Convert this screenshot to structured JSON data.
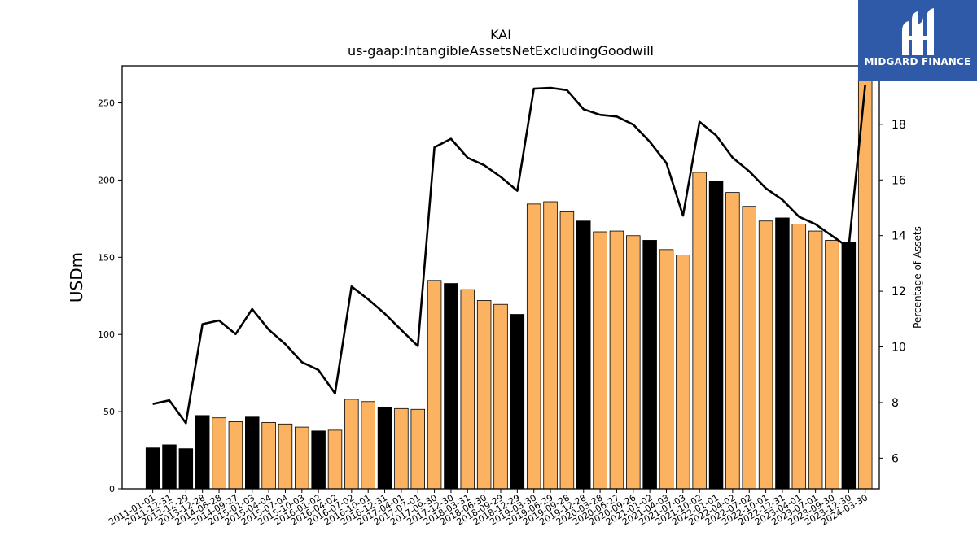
{
  "chart_data": {
    "type": "bar",
    "title": "KAI",
    "subtitle": "us-gaap:IntangibleAssetsNetExcludingGoodwill",
    "ylabel": "USDm",
    "y2label": "Percentage of Assets",
    "ylim": [
      0,
      274
    ],
    "y2lim": [
      4.9,
      20.1
    ],
    "yticks": [
      0,
      50,
      100,
      150,
      200,
      250
    ],
    "y2ticks": [
      6,
      8,
      10,
      12,
      14,
      16,
      18
    ],
    "grid": false,
    "categories": [
      "2011-01-01",
      "2011-12-31",
      "2012-12-29",
      "2013-12-28",
      "2014-06-28",
      "2014-09-27",
      "2015-01-03",
      "2015-04-04",
      "2015-07-04",
      "2015-10-03",
      "2016-01-02",
      "2016-04-02",
      "2016-07-02",
      "2016-10-01",
      "2016-12-31",
      "2017-04-01",
      "2017-07-01",
      "2017-09-30",
      "2017-12-30",
      "2018-03-31",
      "2018-06-30",
      "2018-09-29",
      "2018-12-29",
      "2019-03-30",
      "2019-06-29",
      "2019-09-28",
      "2019-12-28",
      "2020-03-28",
      "2020-06-27",
      "2020-09-26",
      "2021-01-02",
      "2021-04-03",
      "2021-07-03",
      "2021-10-02",
      "2022-01-01",
      "2022-04-02",
      "2022-07-02",
      "2022-10-01",
      "2022-12-31",
      "2023-04-01",
      "2023-07-01",
      "2023-09-30",
      "2023-12-30",
      "2024-03-30"
    ],
    "values": [
      26.5,
      28.5,
      26,
      47.5,
      46,
      43.5,
      46.5,
      43,
      42,
      40,
      37.5,
      38,
      58,
      56.5,
      52.5,
      52,
      51.5,
      135,
      133,
      129,
      122,
      119.5,
      113,
      184.5,
      186,
      179.5,
      173.5,
      166.5,
      167,
      164,
      161,
      155,
      151.5,
      205,
      199,
      192,
      183,
      173.5,
      175.5,
      171.5,
      167,
      161,
      159.5,
      274
    ],
    "bar_colors": [
      "black",
      "black",
      "black",
      "black",
      "orange",
      "orange",
      "black",
      "orange",
      "orange",
      "orange",
      "black",
      "orange",
      "orange",
      "orange",
      "black",
      "orange",
      "orange",
      "orange",
      "black",
      "orange",
      "orange",
      "orange",
      "black",
      "orange",
      "orange",
      "orange",
      "black",
      "orange",
      "orange",
      "orange",
      "black",
      "orange",
      "orange",
      "orange",
      "black",
      "orange",
      "orange",
      "orange",
      "black",
      "orange",
      "orange",
      "orange",
      "black",
      "orange"
    ],
    "line_values": [
      7.95,
      8.08,
      7.26,
      10.82,
      10.95,
      10.46,
      11.36,
      10.62,
      10.1,
      9.45,
      9.17,
      8.33,
      12.17,
      11.71,
      11.2,
      10.61,
      10.03,
      17.17,
      17.48,
      16.8,
      16.53,
      16.11,
      15.61,
      19.28,
      19.31,
      19.23,
      18.54,
      18.34,
      18.28,
      17.99,
      17.37,
      16.61,
      14.72,
      18.09,
      17.6,
      16.8,
      16.31,
      15.7,
      15.29,
      14.68,
      14.41,
      13.99,
      13.57,
      19.42
    ]
  },
  "colors": {
    "orange": "#fbb261",
    "black": "#000000",
    "line": "#000000",
    "logo_bg": "#2f5aa8"
  },
  "logo": {
    "text": "MIDGARD FINANCE",
    "icon": "midgard-logo-icon"
  }
}
